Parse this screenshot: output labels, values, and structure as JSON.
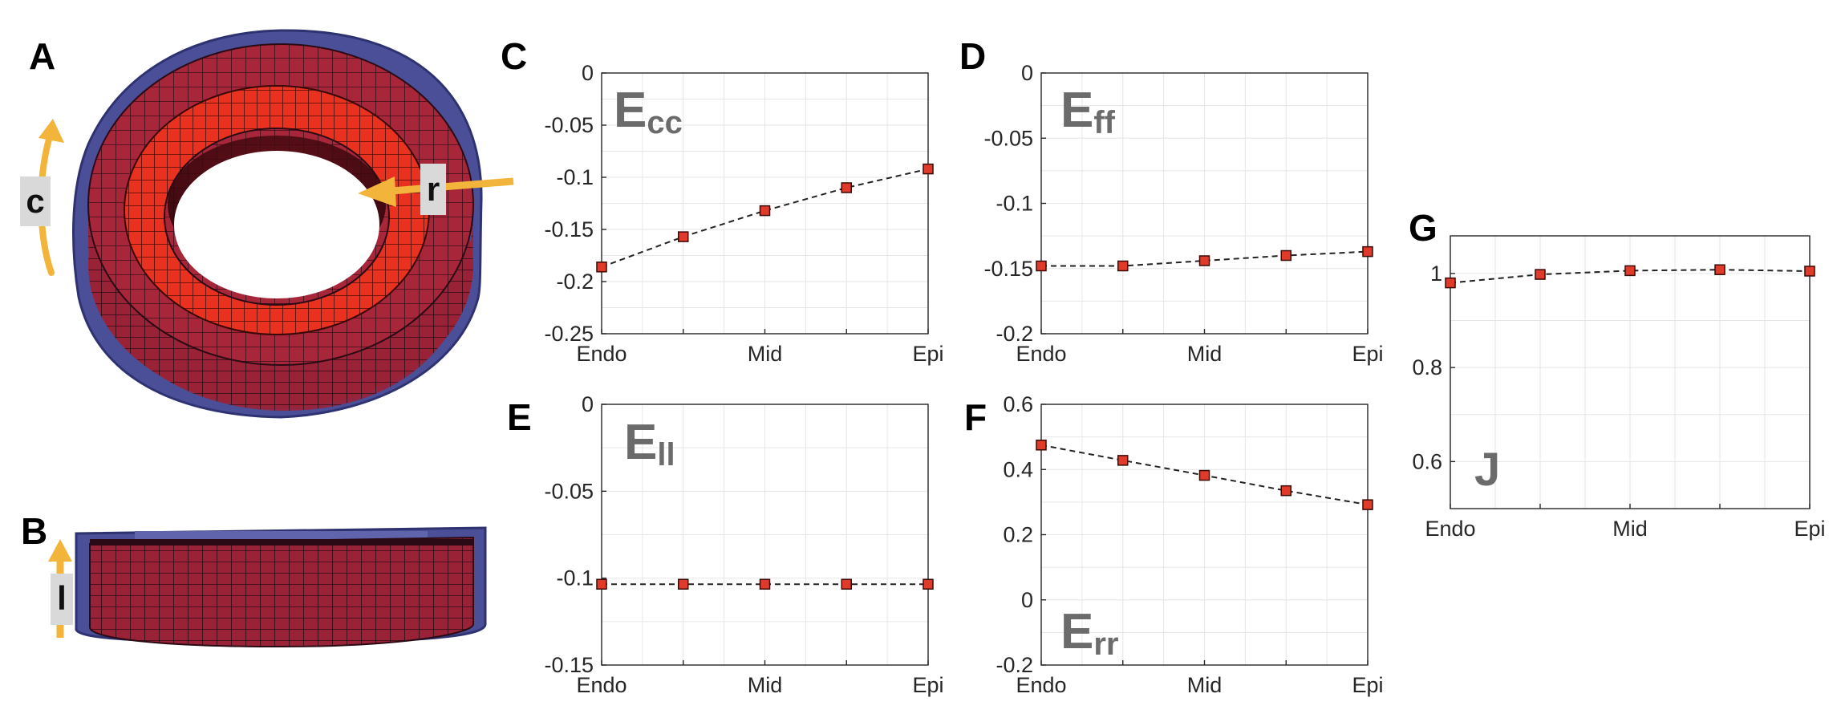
{
  "panels": {
    "A": "A",
    "B": "B",
    "C": "C",
    "D": "D",
    "E": "E",
    "F": "F",
    "G": "G"
  },
  "model_axes": {
    "circumferential": "c",
    "radial": "r",
    "longitudinal": "l"
  },
  "colors": {
    "myocardium": "#a8263a",
    "endocardium": "#e8321f",
    "epicardium_shell": "#4b4f98",
    "arrow": "#f2b43a",
    "marker": "#e03a2a",
    "line": "#222222",
    "grid": "#e6e6e6",
    "label_gray": "#6b6b6b"
  },
  "chart_data": [
    {
      "panel": "C",
      "type": "line",
      "label_main": "E",
      "label_sub": "cc",
      "categories": [
        "Endo",
        "",
        "Mid",
        "",
        "Epi"
      ],
      "values": [
        -0.186,
        -0.157,
        -0.132,
        -0.11,
        -0.092
      ],
      "ylim": [
        -0.25,
        0
      ],
      "yticks": [
        0,
        -0.05,
        -0.1,
        -0.15,
        -0.2,
        -0.25
      ],
      "ytick_labels": [
        "0",
        "-0.05",
        "-0.1",
        "-0.15",
        "-0.2",
        "-0.25"
      ]
    },
    {
      "panel": "D",
      "type": "line",
      "label_main": "E",
      "label_sub": "ff",
      "categories": [
        "Endo",
        "",
        "Mid",
        "",
        "Epi"
      ],
      "values": [
        -0.148,
        -0.148,
        -0.144,
        -0.14,
        -0.137
      ],
      "ylim": [
        -0.2,
        0
      ],
      "yticks": [
        0,
        -0.05,
        -0.1,
        -0.15,
        -0.2
      ],
      "ytick_labels": [
        "0",
        "-0.05",
        "-0.1",
        "-0.15",
        "-0.2"
      ]
    },
    {
      "panel": "E",
      "type": "line",
      "label_main": "E",
      "label_sub": "ll",
      "categories": [
        "Endo",
        "",
        "Mid",
        "",
        "Epi"
      ],
      "values": [
        -0.1035,
        -0.1035,
        -0.1035,
        -0.1035,
        -0.1035
      ],
      "ylim": [
        -0.15,
        0
      ],
      "yticks": [
        0,
        -0.05,
        -0.1,
        -0.15
      ],
      "ytick_labels": [
        "0",
        "-0.05",
        "-0.1",
        "-0.15"
      ]
    },
    {
      "panel": "F",
      "type": "line",
      "label_main": "E",
      "label_sub": "rr",
      "categories": [
        "Endo",
        "",
        "Mid",
        "",
        "Epi"
      ],
      "values": [
        0.475,
        0.428,
        0.382,
        0.335,
        0.292
      ],
      "ylim": [
        -0.2,
        0.6
      ],
      "yticks": [
        0.6,
        0.4,
        0.2,
        0,
        -0.2
      ],
      "ytick_labels": [
        "0.6",
        "0.4",
        "0.2",
        "0",
        "-0.2"
      ]
    },
    {
      "panel": "G",
      "type": "line",
      "label_main": "J",
      "label_sub": "",
      "categories": [
        "Endo",
        "",
        "Mid",
        "",
        "Epi"
      ],
      "values": [
        0.98,
        0.998,
        1.006,
        1.008,
        1.005
      ],
      "ylim": [
        0.5,
        1.08
      ],
      "yticks": [
        1,
        0.8,
        0.6
      ],
      "ytick_labels": [
        "1",
        "0.8",
        "0.6"
      ]
    }
  ]
}
